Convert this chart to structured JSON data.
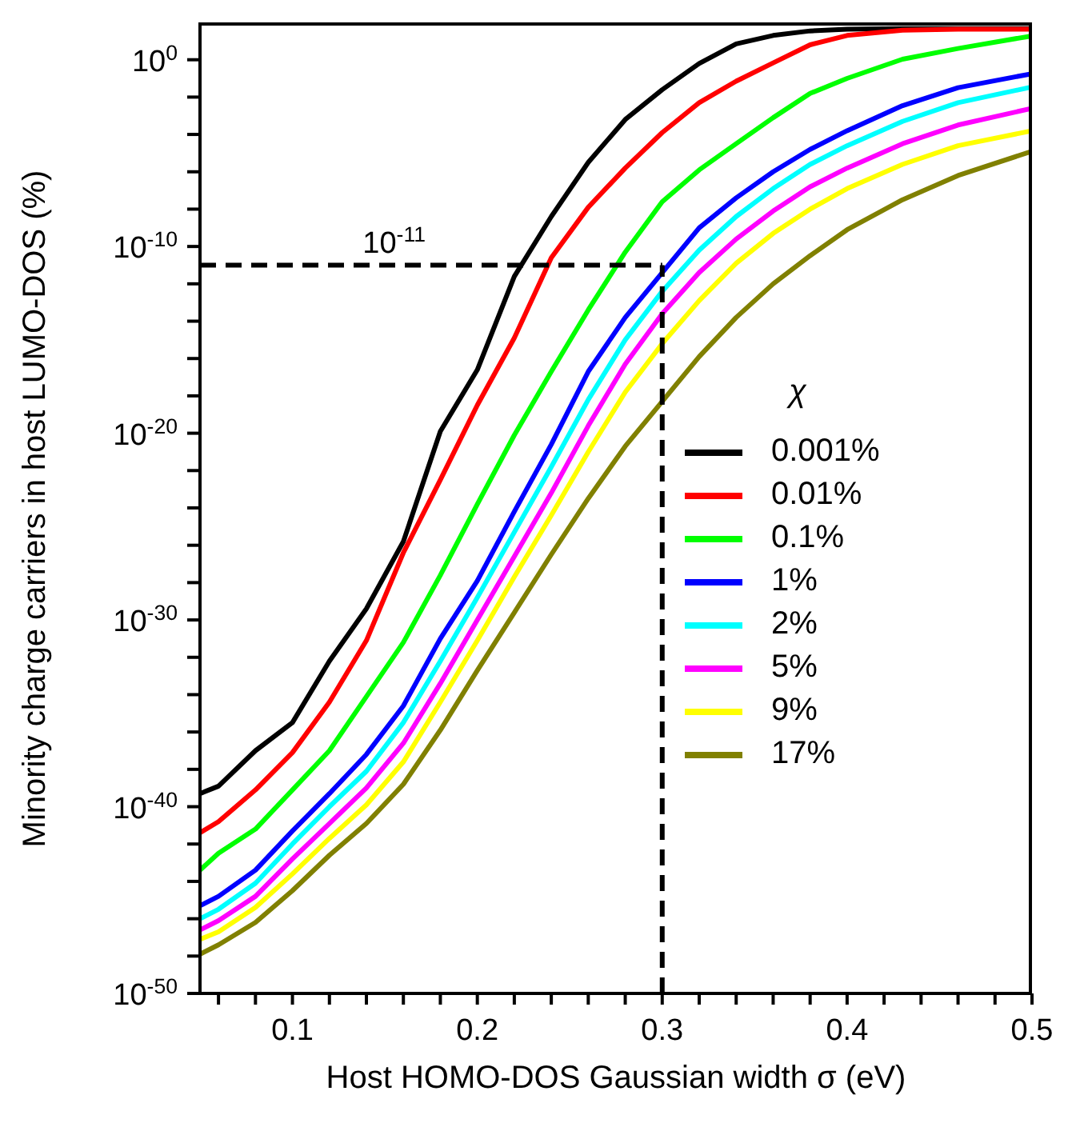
{
  "chart_data": {
    "type": "line",
    "xlabel": "Host HOMO-DOS Gaussian width σ (eV)",
    "ylabel": "Minority charge carriers in host LUMO-DOS (%)",
    "legend_title": "χ",
    "annotations": [
      "10$^{-11}$"
    ],
    "x": [
      0.05,
      0.06,
      0.08,
      0.1,
      0.12,
      0.14,
      0.16,
      0.18,
      0.2,
      0.22,
      0.24,
      0.26,
      0.28,
      0.3,
      0.32,
      0.34,
      0.36,
      0.38,
      0.4,
      0.43,
      0.46,
      0.5
    ],
    "series": [
      {
        "name": "0.001%",
        "color": "#000000",
        "values": [
          5e-40,
          1.26e-39,
          1e-37,
          3.2e-36,
          6.3e-33,
          4e-30,
          1.58e-26,
          1.26e-20,
          2.5e-17,
          2.5e-12,
          4e-09,
          3.2e-06,
          0.00063,
          0.025,
          0.63,
          7.1,
          20,
          35,
          43,
          47,
          47,
          47
        ]
      },
      {
        "name": "0.01%",
        "color": "#ff0000",
        "values": [
          4e-42,
          1.58e-41,
          7.9e-40,
          7.9e-38,
          4e-35,
          7.9e-32,
          4e-27,
          3.2e-23,
          3.2e-19,
          1.26e-15,
          2.5e-11,
          1.26e-08,
          1.58e-06,
          0.000126,
          0.005,
          0.071,
          0.68,
          6.3,
          20,
          38,
          43,
          43
        ]
      },
      {
        "name": "0.1%",
        "color": "#00ff00",
        "values": [
          4e-44,
          3.2e-43,
          6.3e-42,
          7.9e-40,
          1e-37,
          7.9e-35,
          6.3e-32,
          2.5e-28,
          1.58e-24,
          7.9e-21,
          2e-17,
          4e-14,
          5e-11,
          2.5e-08,
          1.26e-06,
          3.2e-05,
          0.00079,
          0.0158,
          0.1,
          1.07,
          4.0,
          19
        ]
      },
      {
        "name": "1%",
        "color": "#0000ff",
        "values": [
          5e-46,
          1.58e-45,
          4e-44,
          5e-42,
          5e-40,
          6.3e-38,
          2.5e-35,
          1e-31,
          1.26e-28,
          6.3e-25,
          2.5e-21,
          2e-17,
          1.58e-14,
          4e-12,
          1e-09,
          4e-08,
          1e-06,
          1.58e-05,
          0.000158,
          0.0035,
          0.032,
          0.18
        ]
      },
      {
        "name": "2%",
        "color": "#00ffff",
        "values": [
          1e-46,
          3.2e-46,
          7.9e-45,
          1e-42,
          1e-40,
          7.9e-39,
          3.2e-36,
          6.3e-33,
          1.58e-29,
          5e-26,
          1.58e-22,
          6.3e-19,
          1e-15,
          4e-13,
          6.3e-11,
          4e-09,
          1.26e-07,
          2.5e-06,
          2.5e-05,
          0.0005,
          0.005,
          0.035
        ]
      },
      {
        "name": "5%",
        "color": "#ff00ff",
        "values": [
          2.5e-47,
          7.9e-47,
          1.58e-45,
          1.58e-43,
          1.26e-41,
          1e-39,
          2.5e-37,
          4e-34,
          1e-30,
          2.5e-27,
          6.3e-24,
          2.5e-20,
          5e-17,
          2.5e-14,
          4e-12,
          2.5e-10,
          7.9e-09,
          1.58e-07,
          1.58e-06,
          3.2e-05,
          0.00032,
          0.0025
        ]
      },
      {
        "name": "9%",
        "color": "#ffff00",
        "values": [
          7.9e-48,
          2e-47,
          4e-46,
          2.5e-44,
          2e-42,
          1.26e-40,
          2.5e-38,
          4e-35,
          7.9e-32,
          2e-28,
          4e-25,
          1e-21,
          1.58e-18,
          6.3e-16,
          1.26e-13,
          1.26e-11,
          5e-10,
          1e-08,
          1.26e-07,
          2.5e-06,
          2.5e-05,
          0.000158
        ]
      },
      {
        "name": "17%",
        "color": "#808000",
        "values": [
          1.26e-48,
          4e-48,
          6.3e-47,
          3.2e-45,
          2.5e-43,
          1.26e-41,
          1.58e-39,
          1.26e-36,
          2e-33,
          2.5e-30,
          3.2e-27,
          3.2e-24,
          2e-21,
          5e-19,
          1.26e-16,
          1.58e-14,
          1e-12,
          3.2e-11,
          7.9e-10,
          3.2e-08,
          6.3e-07,
          1.26e-05
        ]
      }
    ],
    "log": "y",
    "xlim": [
      0.05,
      0.5
    ],
    "xticks": [
      {
        "value": 0.06,
        "label": null
      },
      {
        "value": 0.08,
        "label": null
      },
      0.1,
      {
        "value": 0.12,
        "label": null
      },
      {
        "value": 0.14,
        "label": null
      },
      {
        "value": 0.16,
        "label": null
      },
      {
        "value": 0.18,
        "label": null
      },
      0.2,
      {
        "value": 0.22,
        "label": null
      },
      {
        "value": 0.24,
        "label": null
      },
      {
        "value": 0.26,
        "label": null
      },
      {
        "value": 0.28,
        "label": null
      },
      0.3,
      {
        "value": 0.32,
        "label": null
      },
      {
        "value": 0.34,
        "label": null
      },
      {
        "value": 0.36,
        "label": null
      },
      {
        "value": 0.38,
        "label": null
      },
      0.4,
      {
        "value": 0.42,
        "label": null
      },
      {
        "value": 0.44,
        "label": null
      },
      {
        "value": 0.46,
        "label": null
      },
      {
        "value": 0.48,
        "label": null
      },
      0.5
    ],
    "ylim": [
      1e-50,
      100
    ],
    "yticks": [
      {
        "value": 1e-50,
        "label": "10$^{-50}$"
      },
      {
        "value": 1e-48,
        "label": null
      },
      {
        "value": 1e-46,
        "label": null
      },
      {
        "value": 1e-44,
        "label": null
      },
      {
        "value": 1e-42,
        "label": null
      },
      {
        "value": 1e-40,
        "label": "10$^{-40}$"
      },
      {
        "value": 1e-38,
        "label": null
      },
      {
        "value": 1e-36,
        "label": null
      },
      {
        "value": 1e-34,
        "label": null
      },
      {
        "value": 1e-32,
        "label": null
      },
      {
        "value": 1e-30,
        "label": "10$^{-30}$"
      },
      {
        "value": 1e-28,
        "label": null
      },
      {
        "value": 1e-26,
        "label": null
      },
      {
        "value": 1e-24,
        "label": null
      },
      {
        "value": 1e-22,
        "label": null
      },
      {
        "value": 1e-20,
        "label": "10$^{-20}$"
      },
      {
        "value": 1e-18,
        "label": null
      },
      {
        "value": 1e-16,
        "label": null
      },
      {
        "value": 1e-14,
        "label": null
      },
      {
        "value": 1e-12,
        "label": null
      },
      {
        "value": 1e-10,
        "label": "10$^{-10}$"
      },
      {
        "value": 1e-08,
        "label": null
      },
      {
        "value": 1e-06,
        "label": null
      },
      {
        "value": 0.0001,
        "label": null
      },
      {
        "value": 0.01,
        "label": null
      },
      {
        "value": 1,
        "label": "10$^{0}$"
      }
    ],
    "ref_lines": [
      {
        "axis": "y",
        "value": 1e-11,
        "color": "#000000",
        "line_style": "dashed"
      },
      {
        "axis": "x",
        "value": 0.3,
        "color": "#000000",
        "line_style": "dashed"
      }
    ],
    "legend": "right",
    "marker": "none",
    "line_style": "solid",
    "grid": false
  }
}
